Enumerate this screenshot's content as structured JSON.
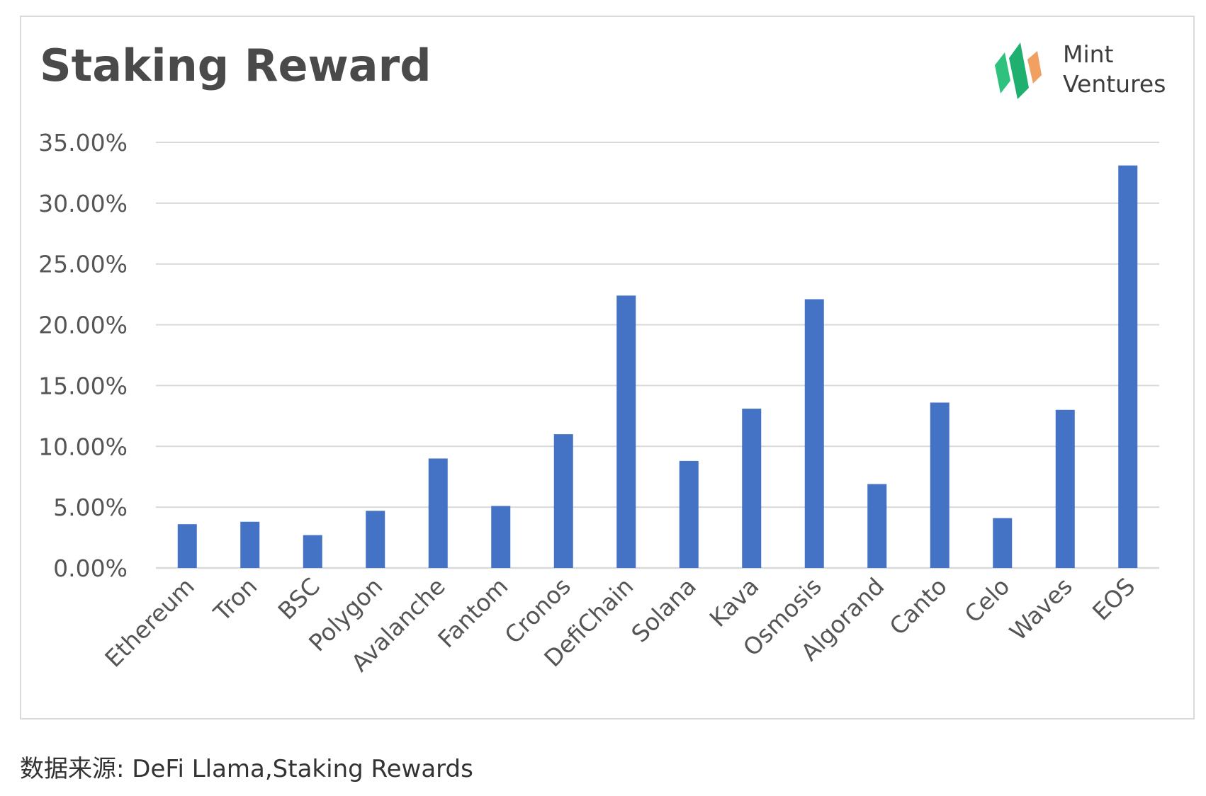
{
  "header": {
    "title": "Staking Reward"
  },
  "logo": {
    "line1": "Mint",
    "line2": "Ventures",
    "icon": "mint-ventures-logo-icon",
    "colors": [
      "#2ec27e",
      "#1a9e6a",
      "#f0a060"
    ]
  },
  "footer": {
    "source": "数据来源: DeFi Llama,Staking Rewards"
  },
  "chart_data": {
    "type": "bar",
    "title": "Staking Reward",
    "xlabel": "",
    "ylabel": "",
    "categories": [
      "Ethereum",
      "Tron",
      "BSC",
      "Polygon",
      "Avalanche",
      "Fantom",
      "Cronos",
      "DefiChain",
      "Solana",
      "Kava",
      "Osmosis",
      "Algorand",
      "Canto",
      "Celo",
      "Waves",
      "EOS"
    ],
    "values": [
      3.6,
      3.8,
      2.7,
      4.7,
      9.0,
      5.1,
      11.0,
      22.4,
      8.8,
      13.1,
      22.1,
      6.9,
      13.6,
      4.1,
      13.0,
      33.1
    ],
    "ylim": [
      0,
      35
    ],
    "yticks": [
      "0.00%",
      "5.00%",
      "10.00%",
      "15.00%",
      "20.00%",
      "25.00%",
      "30.00%",
      "35.00%"
    ],
    "ytick_values": [
      0,
      5,
      10,
      15,
      20,
      25,
      30,
      35
    ],
    "grid": true,
    "legend": "none",
    "bar_color": "#4472c4",
    "grid_color": "#d9d9d9"
  }
}
